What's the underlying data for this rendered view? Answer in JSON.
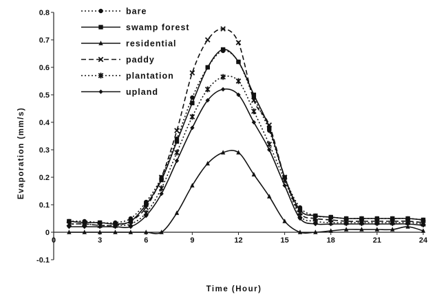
{
  "chart_data": {
    "type": "line",
    "xlabel": "Time (Hour)",
    "ylabel": "Evaporation (mm/s)",
    "xlim": [
      0,
      24
    ],
    "ylim": [
      -0.1,
      0.8
    ],
    "x_ticks": [
      "0",
      "3",
      "6",
      "9",
      "12",
      "15",
      "18",
      "21",
      "24"
    ],
    "y_ticks": [
      "-0.1",
      "0",
      "0.1",
      "0.2",
      "0.3",
      "0.4",
      "0.5",
      "0.6",
      "0.7",
      "0.8"
    ],
    "grid": false,
    "legend_position": "top-left",
    "x": [
      1,
      2,
      3,
      4,
      5,
      6,
      7,
      8,
      9,
      10,
      11,
      12,
      13,
      14,
      15,
      16,
      17,
      18,
      19,
      20,
      21,
      22,
      23,
      24
    ],
    "series": [
      {
        "name": "bare",
        "marker": "circle",
        "dash": "dotted",
        "values": [
          0.04,
          0.04,
          0.035,
          0.035,
          0.05,
          0.11,
          0.2,
          0.34,
          0.49,
          0.6,
          0.66,
          0.62,
          0.49,
          0.37,
          0.2,
          0.09,
          0.06,
          0.055,
          0.05,
          0.05,
          0.05,
          0.05,
          0.05,
          0.045
        ]
      },
      {
        "name": "swamp forest",
        "marker": "square",
        "dash": "solid",
        "values": [
          0.04,
          0.035,
          0.035,
          0.03,
          0.04,
          0.1,
          0.19,
          0.33,
          0.47,
          0.6,
          0.665,
          0.62,
          0.5,
          0.38,
          0.2,
          0.08,
          0.06,
          0.055,
          0.05,
          0.05,
          0.05,
          0.05,
          0.05,
          0.045
        ]
      },
      {
        "name": "residential",
        "marker": "triangle",
        "dash": "solid",
        "values": [
          0.0,
          0.0,
          0.0,
          0.0,
          0.0,
          0.0,
          0.0,
          0.07,
          0.17,
          0.25,
          0.29,
          0.29,
          0.21,
          0.13,
          0.04,
          0.0,
          0.0,
          0.005,
          0.01,
          0.01,
          0.01,
          0.01,
          0.02,
          0.005
        ]
      },
      {
        "name": "paddy",
        "marker": "x",
        "dash": "dashed",
        "values": [
          0.03,
          0.03,
          0.025,
          0.025,
          0.04,
          0.09,
          0.2,
          0.37,
          0.58,
          0.7,
          0.74,
          0.69,
          0.48,
          0.39,
          0.2,
          0.07,
          0.05,
          0.045,
          0.04,
          0.04,
          0.04,
          0.04,
          0.04,
          0.035
        ]
      },
      {
        "name": "plantation",
        "marker": "star",
        "dash": "dotted",
        "values": [
          0.03,
          0.03,
          0.025,
          0.025,
          0.03,
          0.07,
          0.16,
          0.29,
          0.42,
          0.52,
          0.565,
          0.55,
          0.44,
          0.32,
          0.19,
          0.06,
          0.04,
          0.035,
          0.035,
          0.035,
          0.035,
          0.035,
          0.035,
          0.03
        ]
      },
      {
        "name": "upland",
        "marker": "diamond",
        "dash": "solid",
        "values": [
          0.02,
          0.02,
          0.02,
          0.02,
          0.02,
          0.06,
          0.14,
          0.26,
          0.38,
          0.48,
          0.52,
          0.5,
          0.4,
          0.3,
          0.17,
          0.05,
          0.03,
          0.03,
          0.03,
          0.03,
          0.03,
          0.03,
          0.03,
          0.025
        ]
      }
    ]
  }
}
